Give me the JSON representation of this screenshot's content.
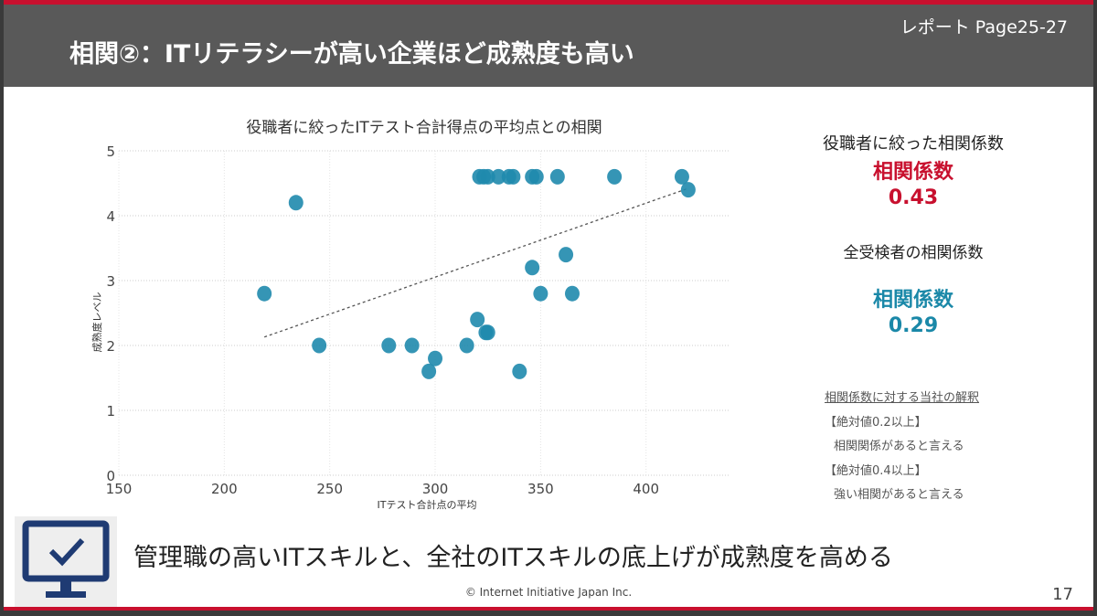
{
  "header": {
    "title": "相関②：ITリテラシーが高い企業ほど成熟度も高い",
    "report_ref": "レポート Page25-27"
  },
  "chart_data": {
    "type": "scatter",
    "title": "役職者に絞ったITテスト合計得点の平均点との相関",
    "xlabel": "ITテスト合計点の平均",
    "ylabel": "成熟度レベル",
    "xlim": [
      150,
      440
    ],
    "ylim": [
      0,
      5
    ],
    "xticks": [
      150,
      200,
      250,
      300,
      350,
      400
    ],
    "yticks": [
      0,
      1,
      2,
      3,
      4,
      5
    ],
    "grid": true,
    "color": "#1f8aad",
    "points": [
      [
        321,
        4.6
      ],
      [
        323,
        4.6
      ],
      [
        325,
        4.6
      ],
      [
        330,
        4.6
      ],
      [
        335,
        4.6
      ],
      [
        337,
        4.6
      ],
      [
        346,
        4.6
      ],
      [
        348,
        4.6
      ],
      [
        358,
        4.6
      ],
      [
        385,
        4.6
      ],
      [
        417,
        4.6
      ],
      [
        420,
        4.4
      ],
      [
        234,
        4.2
      ],
      [
        219,
        2.8
      ],
      [
        245,
        2.0
      ],
      [
        278,
        2.0
      ],
      [
        289,
        2.0
      ],
      [
        315,
        2.0
      ],
      [
        300,
        1.8
      ],
      [
        297,
        1.6
      ],
      [
        320,
        2.4
      ],
      [
        324,
        2.2
      ],
      [
        325,
        2.2
      ],
      [
        340,
        1.6
      ],
      [
        346,
        3.2
      ],
      [
        362,
        3.4
      ],
      [
        350,
        2.8
      ],
      [
        365,
        2.8
      ]
    ],
    "trendline": [
      [
        219,
        2.13
      ],
      [
        419,
        4.41
      ]
    ]
  },
  "side": {
    "exec_heading": "役職者に絞った相関係数",
    "exec_label": "相関係数",
    "exec_value": "0.43",
    "all_heading": "全受検者の相関係数",
    "all_label": "相関係数",
    "all_value": "0.29",
    "notes": [
      "相関係数に対する当社の解釈",
      "【絶対値0.2以上】",
      "相関関係があると言える",
      "【絶対値0.4以上】",
      "強い相関があると言える"
    ],
    "exec_color": "#c8102e",
    "all_color": "#1a88a8"
  },
  "banner": {
    "icon": "monitor-check-icon",
    "text": "管理職の高いITスキルと、全社のITスキルの底上げが成熟度を高める"
  },
  "footer": {
    "copyright": "© Internet Initiative Japan Inc.",
    "page": "17"
  }
}
